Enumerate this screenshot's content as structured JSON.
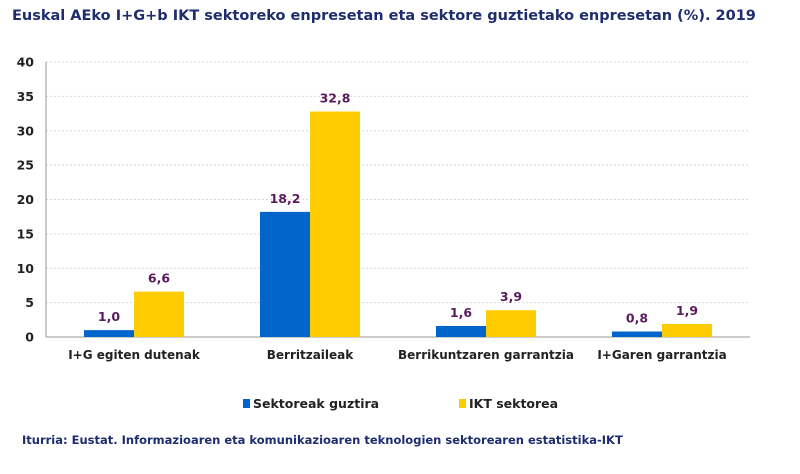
{
  "chart_data": {
    "type": "bar",
    "title": "Euskal AEko I+G+b IKT sektoreko enpresetan eta sektore guztietako enpresetan (%). 2019",
    "categories": [
      "I+G egiten dutenak",
      "Berritzaileak",
      "Berrikuntzaren garrantzia",
      "I+Garen garrantzia"
    ],
    "series": [
      {
        "name": "Sektoreak guztira",
        "values": [
          1.0,
          18.2,
          1.6,
          0.8
        ],
        "labels": [
          "1,0",
          "18,2",
          "1,6",
          "0,8"
        ],
        "color": "#0066cc"
      },
      {
        "name": "IKT sektorea",
        "values": [
          6.6,
          32.8,
          3.9,
          1.9
        ],
        "labels": [
          "6,6",
          "32,8",
          "3,9",
          "1,9"
        ],
        "color": "#ffcc00"
      }
    ],
    "yticks": [
      "0",
      "5",
      "10",
      "15",
      "20",
      "25",
      "30",
      "35",
      "40"
    ],
    "ylim": [
      0,
      40
    ],
    "grid": true,
    "legend": "bottom",
    "source": "Iturria: Eustat. Informazioaren eta komunikazioaren teknologien sektorearen estatistika-IKT"
  }
}
